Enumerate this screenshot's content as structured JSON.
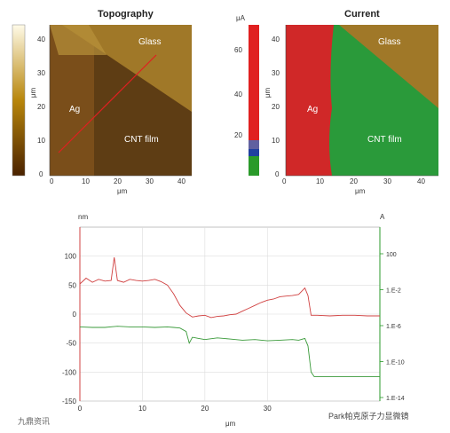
{
  "topography": {
    "title": "Topography",
    "axis_unit": "μm",
    "x_ticks": [
      "0",
      "10",
      "20",
      "30",
      "40"
    ],
    "y_ticks": [
      "0",
      "10",
      "20",
      "30",
      "40"
    ],
    "labels": {
      "glass": "Glass",
      "ag": "Ag",
      "cnt": "CNT film"
    }
  },
  "current": {
    "title": "Current",
    "colorbar_unit": "μA",
    "colorbar_ticks": [
      "60",
      "40",
      "20"
    ],
    "axis_unit": "μm",
    "x_ticks": [
      "0",
      "10",
      "20",
      "30",
      "40"
    ],
    "y_ticks": [
      "0",
      "10",
      "20",
      "30",
      "40"
    ],
    "labels": {
      "glass": "Glass",
      "ag": "Ag",
      "cnt": "CNT film"
    }
  },
  "chart_data": {
    "type": "line",
    "xlabel": "μm",
    "ylabel_left": "nm",
    "ylabel_right": "A",
    "xlim": [
      0,
      48
    ],
    "ylim_left": [
      -150,
      150
    ],
    "x_ticks": [
      0,
      10,
      20,
      30
    ],
    "y_ticks_left": [
      100,
      50,
      0,
      -50,
      -100,
      -150
    ],
    "y_ticks_right": [
      "100",
      "1.E-2",
      "1.E-6",
      "1.E-10",
      "1.E-14"
    ],
    "grid": true,
    "series": [
      {
        "color": "#d04040",
        "axis": "left",
        "x": [
          0,
          1,
          2,
          3,
          4,
          5,
          5.5,
          6,
          7,
          8,
          9,
          10,
          11,
          12,
          13,
          14,
          15,
          16,
          17,
          18,
          19,
          20,
          21,
          22,
          23,
          24,
          25,
          26,
          27,
          28,
          29,
          30,
          31,
          32,
          33,
          34,
          35,
          36,
          36.5,
          37,
          38,
          40,
          42,
          44,
          46,
          48
        ],
        "values": [
          52,
          62,
          55,
          60,
          57,
          58,
          98,
          58,
          55,
          60,
          58,
          57,
          58,
          60,
          56,
          50,
          35,
          15,
          2,
          -5,
          -3,
          -2,
          -6,
          -4,
          -3,
          -1,
          0,
          5,
          10,
          15,
          20,
          24,
          26,
          30,
          31,
          32,
          34,
          45,
          32,
          -2,
          -2,
          -3,
          -2,
          -2,
          -3,
          -3
        ]
      },
      {
        "color": "#3a9a3a",
        "axis": "left",
        "x": [
          0,
          2,
          4,
          6,
          8,
          10,
          12,
          14,
          15,
          16,
          17,
          17.5,
          18,
          19,
          20,
          22,
          24,
          26,
          28,
          30,
          32,
          34,
          35,
          36,
          36.5,
          37,
          37.5,
          38,
          40,
          42,
          44,
          46,
          48
        ],
        "values": [
          -22,
          -23,
          -23,
          -21,
          -22,
          -22,
          -23,
          -22,
          -23,
          -24,
          -30,
          -50,
          -40,
          -42,
          -44,
          -41,
          -43,
          -45,
          -44,
          -46,
          -45,
          -44,
          -45,
          -42,
          -55,
          -100,
          -108,
          -108,
          -108,
          -108,
          -108,
          -108,
          -108
        ]
      }
    ]
  },
  "watermarks": {
    "left": "九鼎资讯",
    "right": "Park帕克原子力显微镜"
  }
}
